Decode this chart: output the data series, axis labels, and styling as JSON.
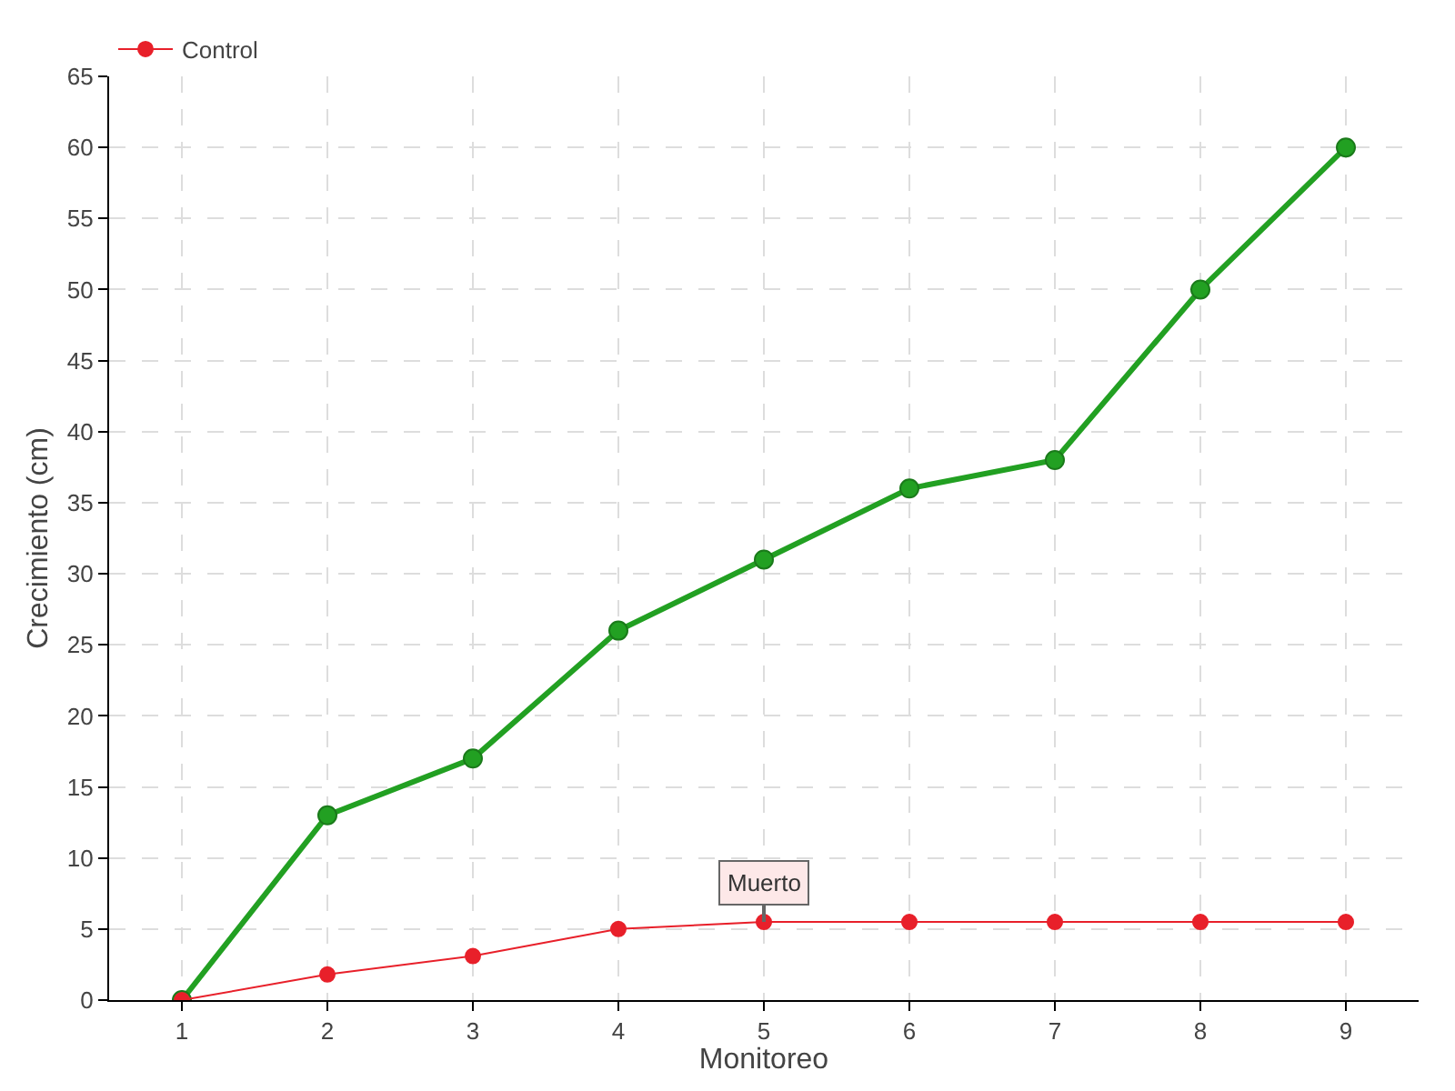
{
  "chart_data": {
    "type": "line",
    "xlabel": "Monitoreo",
    "ylabel": "Crecimiento (cm)",
    "x": [
      1,
      2,
      3,
      4,
      5,
      6,
      7,
      8,
      9
    ],
    "series": [
      {
        "color": "#22a022",
        "values": [
          0,
          13,
          17,
          26,
          31,
          36,
          38,
          50,
          60
        ]
      },
      {
        "name": "Control",
        "color": "#e8202a",
        "values": [
          0,
          1.8,
          3.1,
          5,
          5.5,
          5.5,
          5.5,
          5.5,
          5.5
        ]
      }
    ],
    "annotations": [
      {
        "text": "Muerto",
        "x": 5,
        "y": 5.5
      }
    ],
    "xlim": [
      0.5,
      9.5
    ],
    "xticks": [
      1,
      2,
      3,
      4,
      5,
      6,
      7,
      8,
      9
    ],
    "ylim": [
      0,
      65
    ],
    "yticks": [
      0,
      5,
      10,
      15,
      20,
      25,
      30,
      35,
      40,
      45,
      50,
      55,
      60,
      65
    ],
    "grid": true,
    "legend": "top left",
    "marker": "circle",
    "line_style": "solid"
  }
}
